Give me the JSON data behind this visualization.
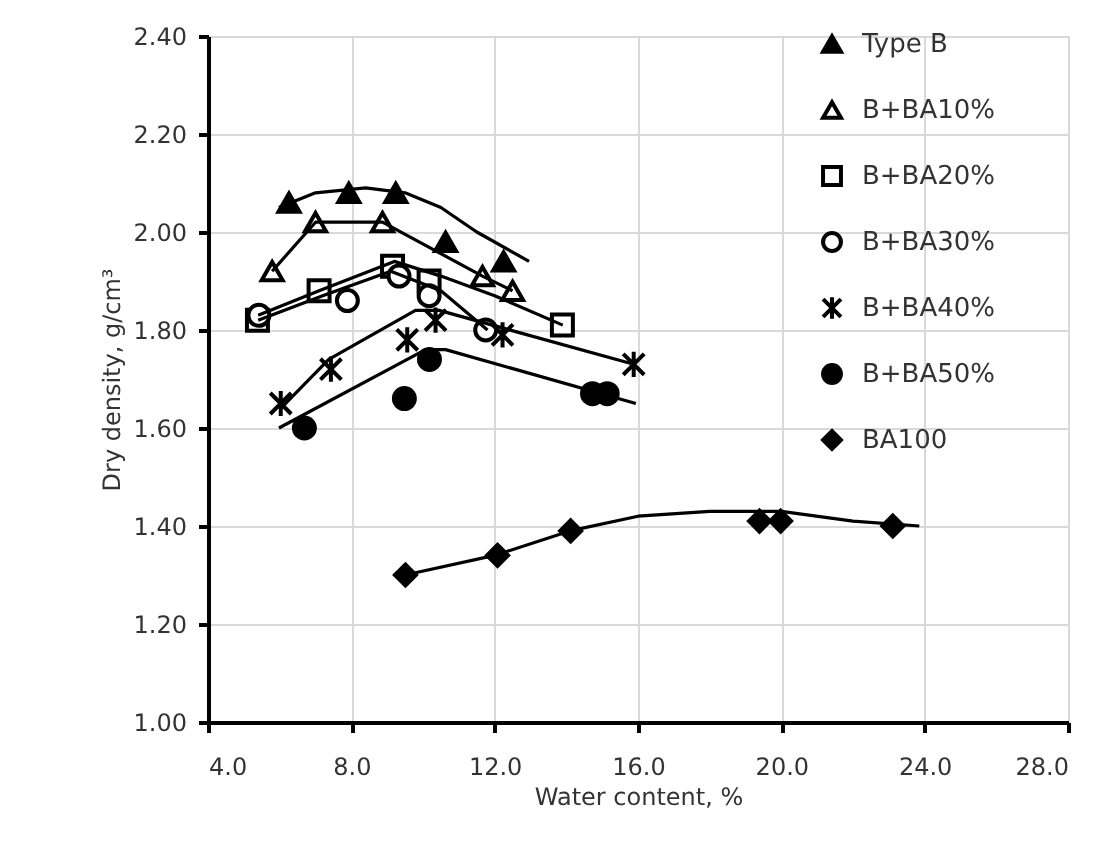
{
  "chart_data": {
    "type": "scatter",
    "xlabel": "Water content, %",
    "ylabel": "Dry density, g/cm³",
    "xlim": [
      4,
      28
    ],
    "ylim": [
      1.0,
      2.4
    ],
    "xticks": [
      {
        "value": 4,
        "label": "4.0"
      },
      {
        "value": 8,
        "label": "8.0"
      },
      {
        "value": 12,
        "label": "12.0"
      },
      {
        "value": 16,
        "label": "16.0"
      },
      {
        "value": 20,
        "label": "20.0"
      },
      {
        "value": 24,
        "label": "24.0"
      },
      {
        "value": 28,
        "label": "28.0"
      }
    ],
    "yticks": [
      {
        "value": 1.0,
        "label": "1.00"
      },
      {
        "value": 1.2,
        "label": "1.20"
      },
      {
        "value": 1.4,
        "label": "1.40"
      },
      {
        "value": 1.6,
        "label": "1.60"
      },
      {
        "value": 1.8,
        "label": "1.80"
      },
      {
        "value": 2.0,
        "label": "2.00"
      },
      {
        "value": 2.2,
        "label": "2.20"
      },
      {
        "value": 2.4,
        "label": "2.40"
      }
    ],
    "grid": true,
    "legend": "top right",
    "series": [
      {
        "name": "Type B",
        "marker": "triangle",
        "color": "#000000",
        "x": [
          6.26,
          7.93,
          9.24,
          10.63,
          12.25
        ],
        "values": [
          2.06,
          2.08,
          2.08,
          1.98,
          1.94
        ]
      },
      {
        "name": "B+BA10%",
        "marker": "triangle-open",
        "color": "#000000",
        "x": [
          5.79,
          7.0,
          8.87,
          11.66,
          12.5
        ],
        "values": [
          1.92,
          2.02,
          2.02,
          1.91,
          1.88
        ]
      },
      {
        "name": "B+BA20%",
        "marker": "square-open",
        "color": "#000000",
        "x": [
          5.38,
          7.1,
          9.15,
          10.17,
          13.89
        ],
        "values": [
          1.82,
          1.88,
          1.93,
          1.9,
          1.81
        ]
      },
      {
        "name": "B+BA30%",
        "marker": "circle-open",
        "color": "#000000",
        "x": [
          5.42,
          7.89,
          9.33,
          10.17,
          11.75
        ],
        "values": [
          1.83,
          1.86,
          1.91,
          1.87,
          1.8
        ]
      },
      {
        "name": "B+BA40%",
        "marker": "cross",
        "color": "#000000",
        "x": [
          6.03,
          7.43,
          9.56,
          10.35,
          12.22,
          15.88
        ],
        "values": [
          1.65,
          1.72,
          1.78,
          1.82,
          1.79,
          1.73
        ]
      },
      {
        "name": "B+BA50%",
        "marker": "circle",
        "color": "#000000",
        "x": [
          6.69,
          9.48,
          10.18,
          14.73,
          15.14
        ],
        "values": [
          1.6,
          1.66,
          1.74,
          1.67,
          1.67
        ]
      },
      {
        "name": "BA100",
        "marker": "diamond",
        "color": "#000000",
        "x": [
          9.51,
          12.08,
          14.12,
          19.39,
          19.98,
          23.11
        ],
        "values": [
          1.3,
          1.34,
          1.39,
          1.41,
          1.41,
          1.4
        ]
      },
      {
        "type": "line",
        "color": "#000000",
        "x": [
          5.98,
          7.0,
          8.4,
          9.5,
          10.5,
          11.5,
          12.96
        ],
        "values": [
          2.05,
          2.08,
          2.09,
          2.08,
          2.05,
          2.0,
          1.94
        ]
      },
      {
        "type": "line",
        "color": "#000000",
        "x": [
          5.79,
          7.0,
          8.87,
          11.66,
          12.5
        ],
        "values": [
          1.92,
          2.02,
          2.02,
          1.91,
          1.88
        ]
      },
      {
        "type": "line",
        "color": "#000000",
        "x": [
          5.4,
          7.1,
          9.2,
          10.5,
          12.0,
          13.9
        ],
        "values": [
          1.83,
          1.88,
          1.94,
          1.91,
          1.87,
          1.81
        ]
      },
      {
        "type": "line",
        "color": "#000000",
        "x": [
          5.4,
          7.2,
          9.1,
          10.5,
          11.8
        ],
        "values": [
          1.82,
          1.87,
          1.92,
          1.88,
          1.8
        ]
      },
      {
        "type": "line",
        "color": "#000000",
        "x": [
          6.03,
          7.37,
          9.79,
          10.45,
          15.88
        ],
        "values": [
          1.64,
          1.74,
          1.84,
          1.84,
          1.73
        ]
      },
      {
        "type": "line",
        "color": "#000000",
        "x": [
          5.98,
          10.07,
          10.63,
          15.94
        ],
        "values": [
          1.6,
          1.76,
          1.76,
          1.65
        ]
      },
      {
        "type": "line",
        "color": "#000000",
        "x": [
          9.5,
          12.0,
          14.1,
          16.0,
          18.0,
          20.0,
          22.0,
          23.85
        ],
        "values": [
          1.3,
          1.34,
          1.39,
          1.42,
          1.43,
          1.43,
          1.41,
          1.4
        ]
      }
    ]
  }
}
